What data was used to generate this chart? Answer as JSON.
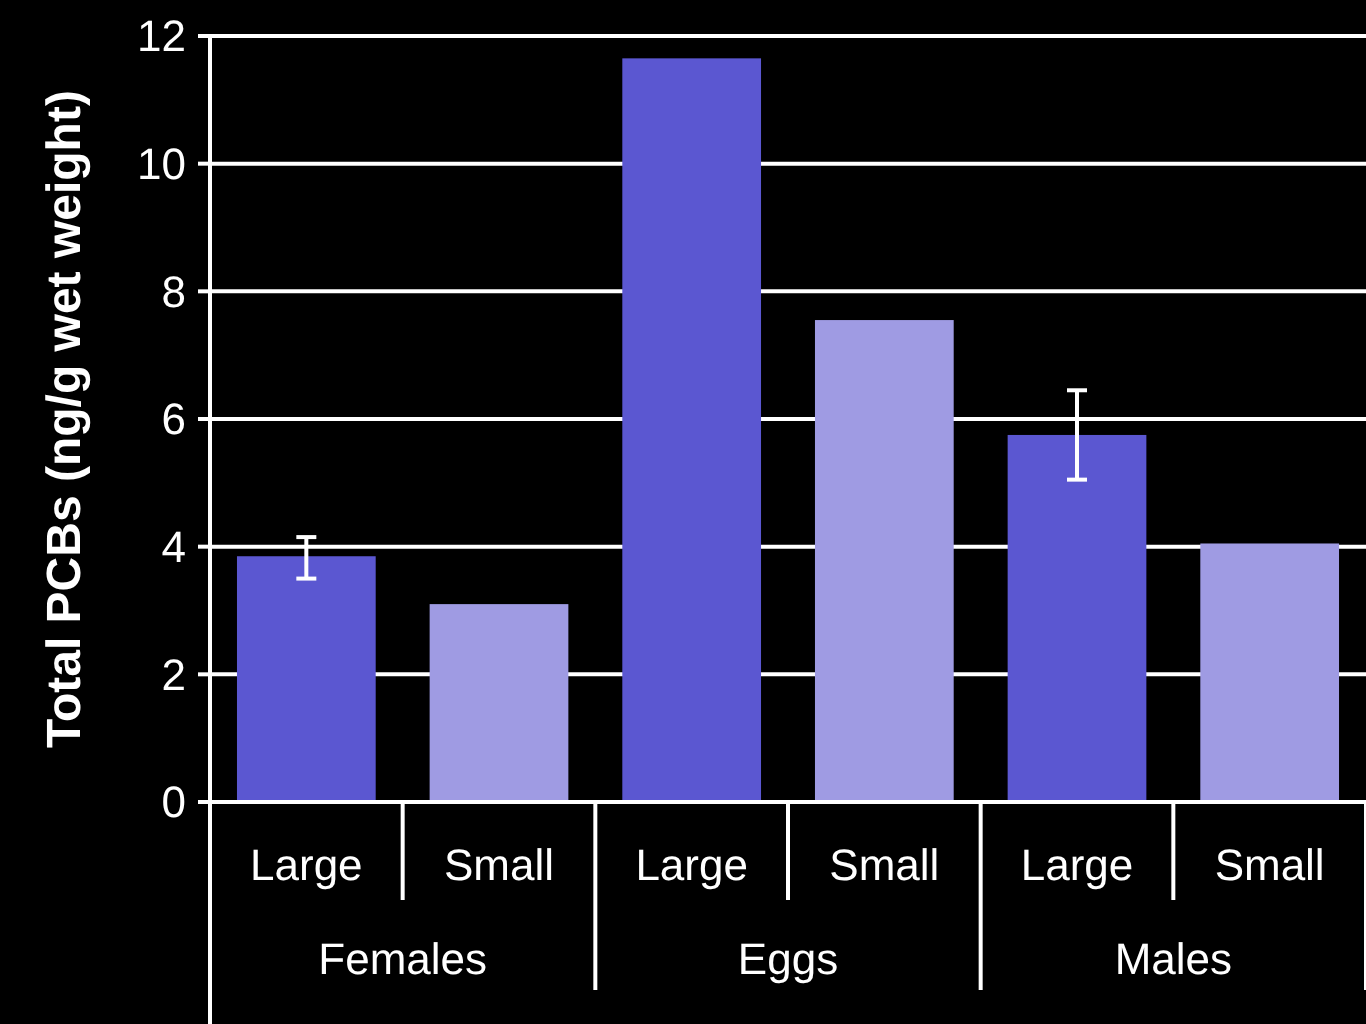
{
  "chart_data": {
    "type": "bar",
    "ylabel": "Total PCBs (ng/g wet weight)",
    "categories": [
      "Large",
      "Small",
      "Large",
      "Small",
      "Large",
      "Small"
    ],
    "values": [
      3.85,
      3.1,
      11.65,
      7.55,
      5.75,
      4.05
    ],
    "colors": [
      "#5b57d1",
      "#9f9be3",
      "#5b57d1",
      "#9f9be3",
      "#5b57d1",
      "#9f9be3"
    ],
    "errors": [
      [
        3.5,
        4.15
      ],
      null,
      null,
      null,
      [
        5.05,
        6.45
      ],
      null
    ],
    "annotations": [
      "Females",
      "Eggs",
      "Males"
    ],
    "ylim": [
      0,
      12
    ],
    "yticks": [
      0,
      2,
      4,
      6,
      8,
      10,
      12
    ],
    "grid": "y"
  }
}
